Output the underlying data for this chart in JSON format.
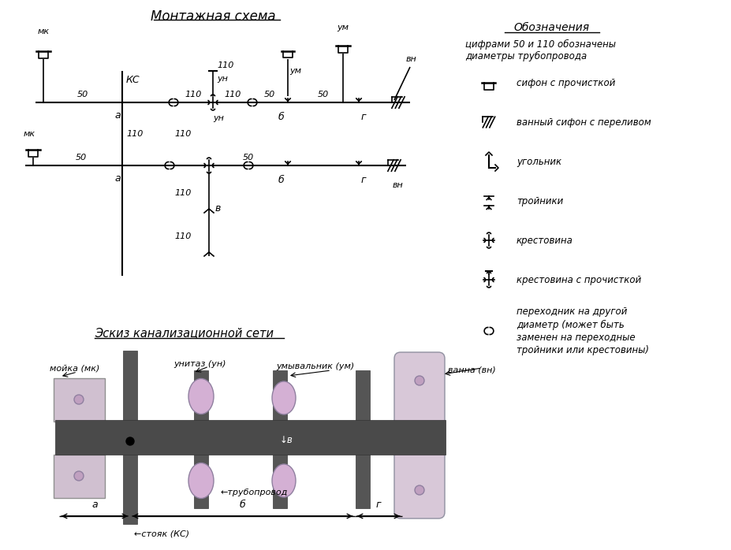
{
  "title": "Монтажная схема",
  "sketch_title": "Эскиз канализационной сети",
  "legend_title": "Обозначения",
  "legend_subtitle": "цифрами 50 и 110 обозначены\nдиаметры трубопровода",
  "legend_items": [
    "сифон с прочисткой",
    "ванный сифон с переливом",
    "угольник",
    "тройники",
    "крестовина",
    "крестовина с прочисткой",
    "переходник на другой\nдиаметр (может быть\nзаменен на переходные\nтройники или крестовины)"
  ],
  "bg_color": "#ffffff",
  "line_color": "#000000",
  "dark_gray": "#4a4a4a",
  "med_gray": "#888888",
  "fixture_fill": "#d8c0d8",
  "fixture_edge": "#a080a0"
}
